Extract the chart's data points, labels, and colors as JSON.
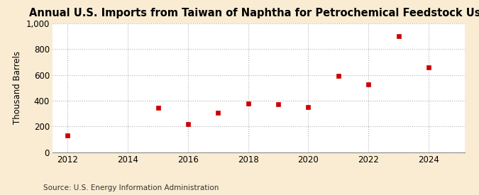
{
  "title": "Annual U.S. Imports from Taiwan of Naphtha for Petrochemical Feedstock Use",
  "ylabel": "Thousand Barrels",
  "source": "Source: U.S. Energy Information Administration",
  "years": [
    2012,
    2015,
    2016,
    2017,
    2018,
    2019,
    2020,
    2021,
    2022,
    2023,
    2024
  ],
  "values": [
    130,
    345,
    215,
    308,
    375,
    372,
    352,
    590,
    528,
    900,
    658
  ],
  "marker_color": "#cc0000",
  "marker": "s",
  "marker_size": 4,
  "xlim": [
    2011.5,
    2025.2
  ],
  "ylim": [
    0,
    1000
  ],
  "yticks": [
    0,
    200,
    400,
    600,
    800,
    1000
  ],
  "xticks": [
    2012,
    2014,
    2016,
    2018,
    2020,
    2022,
    2024
  ],
  "figure_bg_color": "#faecd2",
  "plot_bg_color": "#ffffff",
  "grid_color": "#aaaaaa",
  "title_fontsize": 10.5,
  "label_fontsize": 8.5,
  "tick_fontsize": 8.5,
  "source_fontsize": 7.5
}
